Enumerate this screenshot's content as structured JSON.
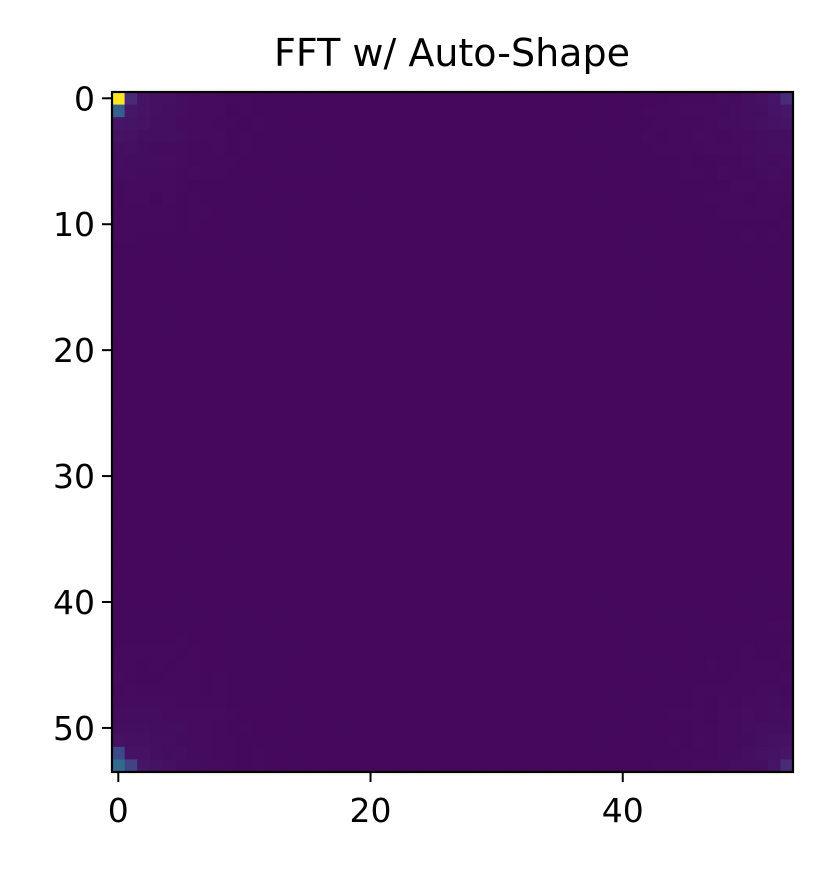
{
  "chart_data": {
    "type": "heatmap",
    "title": "FFT w/ Auto-Shape",
    "colormap": "viridis",
    "colorbar": false,
    "grid": false,
    "rows": 54,
    "cols": 54,
    "xlim": [
      -0.5,
      53.5
    ],
    "ylim": [
      53.5,
      -0.5
    ],
    "y_axis_inverted": true,
    "xticks": [
      0,
      20,
      40
    ],
    "xtick_labels": [
      "0",
      "20",
      "40"
    ],
    "yticks": [
      0,
      10,
      20,
      30,
      40,
      50
    ],
    "ytick_labels": [
      "0",
      "10",
      "20",
      "30",
      "40",
      "50"
    ],
    "normalized_range": [
      0,
      1
    ],
    "background_level": 0.02,
    "notable_cells": [
      {
        "row": 0,
        "col": 0,
        "value": 1.0
      },
      {
        "row": 1,
        "col": 0,
        "value": 0.3
      },
      {
        "row": 0,
        "col": 1,
        "value": 0.12
      },
      {
        "row": 53,
        "col": 0,
        "value": 0.35
      },
      {
        "row": 52,
        "col": 0,
        "value": 0.22
      },
      {
        "row": 53,
        "col": 1,
        "value": 0.2
      },
      {
        "row": 0,
        "col": 53,
        "value": 0.12
      },
      {
        "row": 53,
        "col": 53,
        "value": 0.12
      }
    ],
    "colors": {
      "low": "#440154",
      "high": "#fde725"
    }
  }
}
